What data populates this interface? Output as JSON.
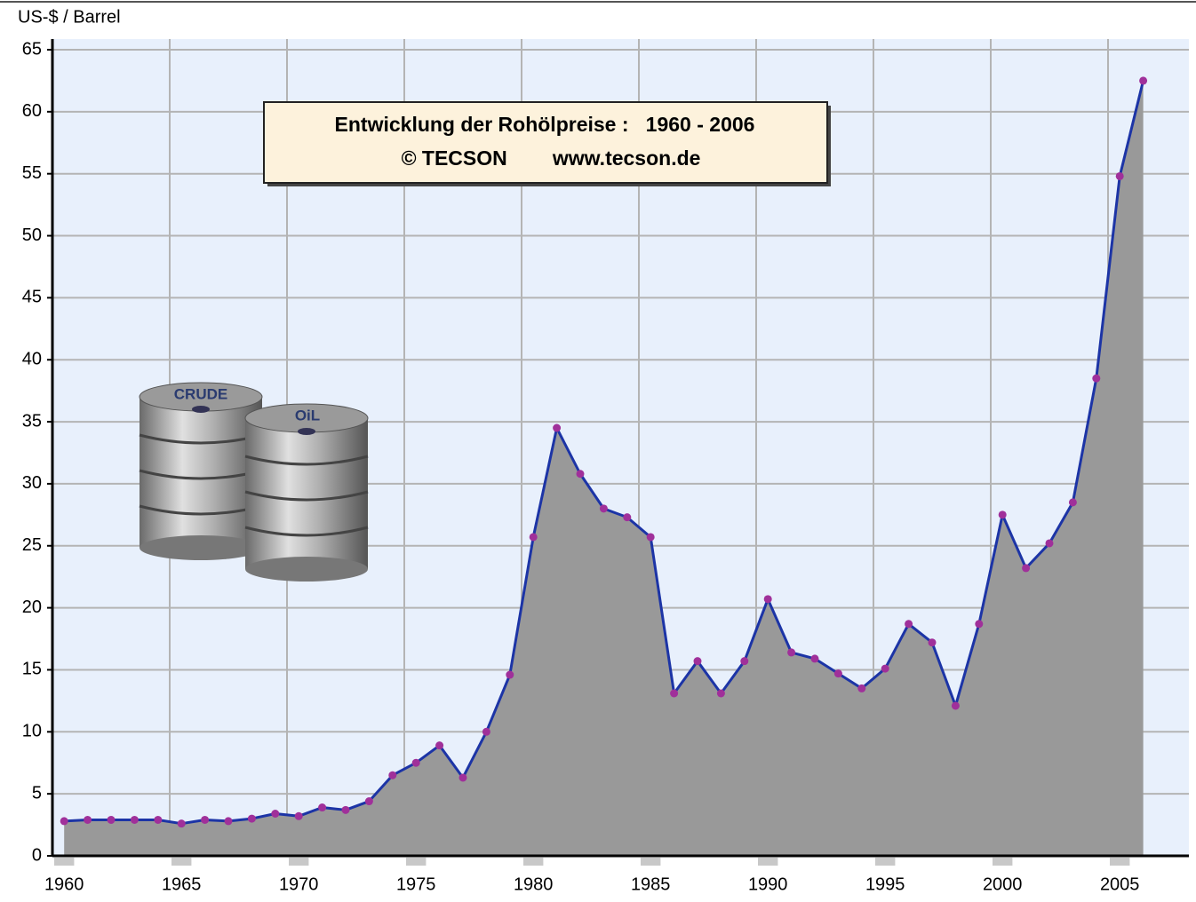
{
  "chart_data": {
    "type": "area",
    "ylabel": "US-$ / Barrel",
    "title": "Entwicklung der Rohölpreise :   1960 - 2006",
    "subtitle": "© TECSON        www.tecson.de",
    "annotations": [
      "CRUDE",
      "OiL"
    ],
    "categories": [
      "1960",
      null,
      null,
      null,
      null,
      "1965",
      null,
      null,
      null,
      null,
      "1970",
      null,
      null,
      null,
      null,
      "1975",
      null,
      null,
      null,
      null,
      "1980",
      null,
      null,
      null,
      null,
      "1985",
      null,
      null,
      null,
      null,
      "1990",
      null,
      null,
      null,
      null,
      "1995",
      null,
      null,
      null,
      null,
      "2000",
      null,
      null,
      null,
      null,
      "2005",
      null
    ],
    "series": [
      {
        "color": "#1c34a6",
        "fill": "#999999",
        "marker_color": "#a0309a",
        "values": [
          2.8,
          2.9,
          2.9,
          2.9,
          2.9,
          2.6,
          2.9,
          2.8,
          3.0,
          3.4,
          3.2,
          3.9,
          3.7,
          4.4,
          6.5,
          7.5,
          8.9,
          6.3,
          10.0,
          14.6,
          25.7,
          34.5,
          30.8,
          28.0,
          27.3,
          25.7,
          13.1,
          15.7,
          13.1,
          15.7,
          20.7,
          16.4,
          15.9,
          14.7,
          13.5,
          15.1,
          18.7,
          17.2,
          12.1,
          18.7,
          27.5,
          23.2,
          25.2,
          28.5,
          38.5,
          54.8,
          62.5
        ]
      }
    ],
    "ylim": [
      0,
      65
    ],
    "yticks": [
      0,
      5,
      10,
      15,
      20,
      25,
      30,
      35,
      40,
      45,
      50,
      55,
      60,
      65
    ],
    "grid": true,
    "background": "#e8f0fc"
  }
}
